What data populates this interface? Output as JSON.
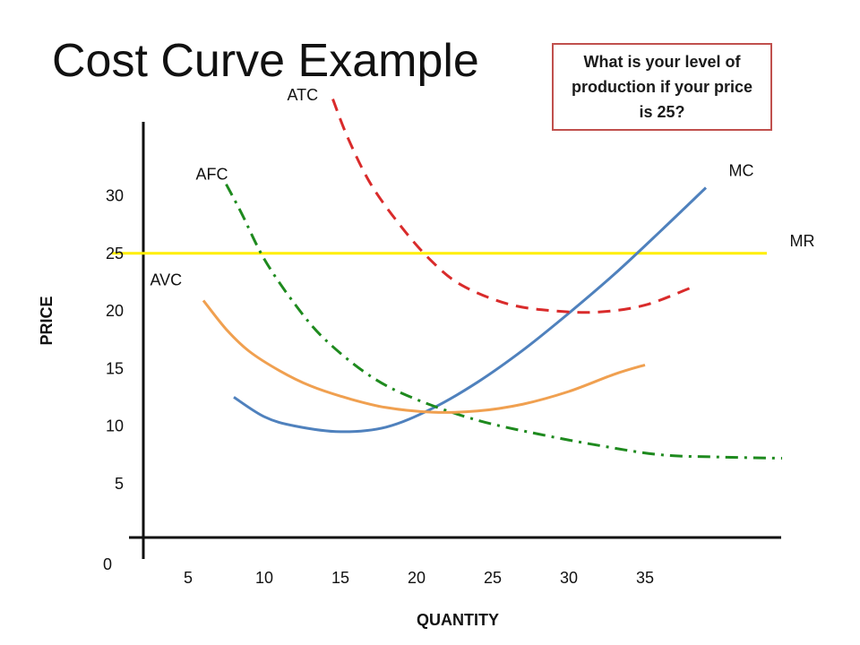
{
  "slide": {
    "title": "Cost Curve Example",
    "question": "What is your level of production if your price is 25?"
  },
  "chart_data": {
    "type": "line",
    "xlabel": "QUANTITY",
    "ylabel": "PRICE",
    "x_ticks": [
      5,
      10,
      15,
      20,
      25,
      30,
      35
    ],
    "y_ticks": [
      5,
      10,
      15,
      20,
      25,
      30
    ],
    "origin_label": "0",
    "grid": false,
    "colors": {
      "MC": "#4f81bd",
      "ATC": "#d92b2b",
      "AFC": "#1e8a1e",
      "AVC": "#f0a050",
      "MR": "#ffee00"
    },
    "series": [
      {
        "name": "MR",
        "style": "solid",
        "points": [
          [
            0,
            25
          ],
          [
            43,
            25
          ]
        ]
      },
      {
        "name": "MC",
        "style": "solid",
        "points": [
          [
            8,
            12.5
          ],
          [
            10,
            10.8
          ],
          [
            12,
            10
          ],
          [
            15,
            9.5
          ],
          [
            18,
            9.9
          ],
          [
            21,
            11.5
          ],
          [
            24,
            13.8
          ],
          [
            27,
            16.6
          ],
          [
            30,
            19.8
          ],
          [
            33,
            23.2
          ],
          [
            36,
            26.9
          ],
          [
            39,
            30.7
          ]
        ]
      },
      {
        "name": "ATC",
        "style": "dashed",
        "points": [
          [
            14.5,
            38.4
          ],
          [
            15.5,
            35
          ],
          [
            17,
            31
          ],
          [
            19,
            27.3
          ],
          [
            21,
            24.3
          ],
          [
            23,
            22.2
          ],
          [
            26,
            20.6
          ],
          [
            29,
            20
          ],
          [
            32,
            19.9
          ],
          [
            35,
            20.5
          ],
          [
            38,
            22
          ]
        ]
      },
      {
        "name": "AFC",
        "style": "dashdot",
        "points": [
          [
            7.5,
            31
          ],
          [
            8.5,
            28.5
          ],
          [
            10,
            24.5
          ],
          [
            12,
            20.6
          ],
          [
            14,
            17.5
          ],
          [
            17,
            14.3
          ],
          [
            20,
            12.3
          ],
          [
            24,
            10.5
          ],
          [
            28,
            9.3
          ],
          [
            32,
            8.3
          ],
          [
            36,
            7.5
          ],
          [
            40,
            7.3
          ],
          [
            44,
            7.2
          ]
        ]
      },
      {
        "name": "AVC",
        "style": "solid",
        "points": [
          [
            6,
            20.9
          ],
          [
            7.5,
            18.4
          ],
          [
            9,
            16.5
          ],
          [
            11,
            14.8
          ],
          [
            13,
            13.5
          ],
          [
            15.5,
            12.4
          ],
          [
            18,
            11.6
          ],
          [
            21,
            11.2
          ],
          [
            24,
            11.3
          ],
          [
            27,
            11.9
          ],
          [
            30,
            13
          ],
          [
            33,
            14.5
          ],
          [
            35,
            15.3
          ]
        ]
      }
    ],
    "curve_labels": [
      {
        "series": "MC",
        "text": "MC",
        "at": [
          40.5,
          31.7
        ]
      },
      {
        "series": "MR",
        "text": "MR",
        "at": [
          44.5,
          25.6
        ]
      },
      {
        "series": "ATC",
        "text": "ATC",
        "at": [
          11.5,
          38.3
        ]
      },
      {
        "series": "AFC",
        "text": "AFC",
        "at": [
          5.5,
          31.4
        ]
      },
      {
        "series": "AVC",
        "text": "AVC",
        "at": [
          2.5,
          22.2
        ]
      }
    ]
  }
}
